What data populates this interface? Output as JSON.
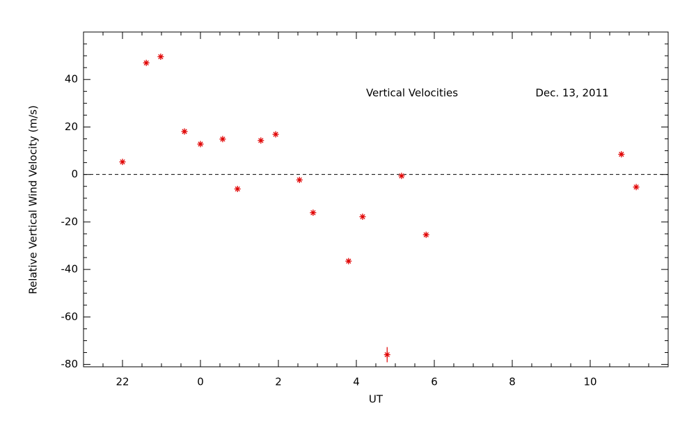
{
  "chart_data": {
    "type": "scatter",
    "xlabel": "UT",
    "ylabel": "Relative Vertical Wind Velocity (m/s)",
    "annotations": [
      "Vertical Velocities",
      "Dec. 13, 2011"
    ],
    "x": [
      -2.0,
      -1.39,
      -1.02,
      -0.41,
      0.0,
      0.57,
      0.95,
      1.55,
      1.93,
      2.54,
      2.89,
      3.8,
      4.16,
      4.79,
      5.16,
      5.79,
      10.8,
      11.18
    ],
    "series": [
      {
        "color": "#e00000",
        "values": [
          5.3,
          47.0,
          49.6,
          18.1,
          12.8,
          14.9,
          -6.1,
          14.3,
          16.9,
          -2.3,
          -16.1,
          -36.5,
          -17.8,
          -75.9,
          -0.6,
          -25.4,
          8.5,
          -5.3
        ],
        "errors": [
          null,
          null,
          null,
          null,
          null,
          null,
          null,
          null,
          null,
          null,
          null,
          null,
          null,
          3.2,
          null,
          null,
          null,
          null
        ]
      }
    ],
    "xlim": [
      -3,
      12
    ],
    "xticks": [
      {
        "value": -2,
        "label": "22"
      },
      0,
      2,
      4,
      6,
      8,
      10
    ],
    "ylim": [
      -81,
      60
    ],
    "yticks": [
      -80,
      -60,
      -40,
      -20,
      0,
      20,
      40
    ],
    "reference_line": 0
  }
}
